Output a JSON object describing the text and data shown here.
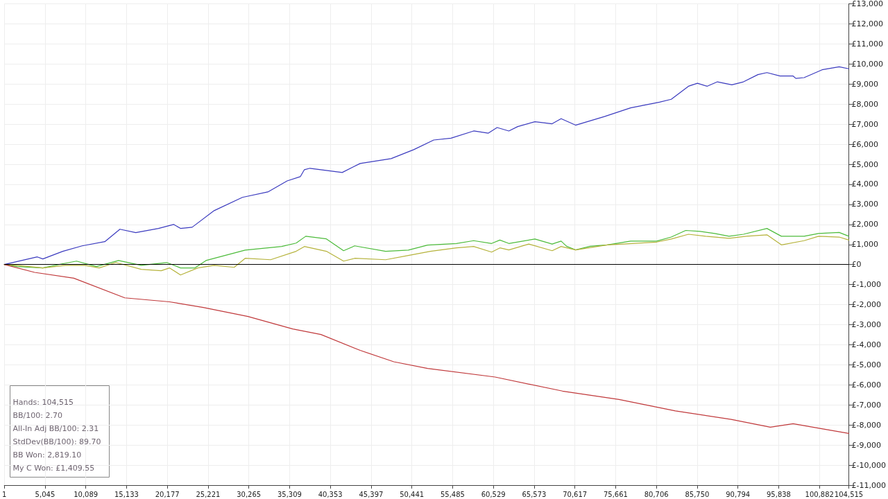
{
  "chart_data": {
    "type": "line",
    "xlim": [
      1,
      104515
    ],
    "ylim": [
      -11000,
      13000
    ],
    "xticks": [
      1,
      {
        "value": 5045,
        "label": "5,045"
      },
      {
        "value": 10089,
        "label": "10,089"
      },
      {
        "value": 15133,
        "label": "15,133"
      },
      {
        "value": 20177,
        "label": "20,177"
      },
      {
        "value": 25221,
        "label": "25,221"
      },
      {
        "value": 30265,
        "label": "30,265"
      },
      {
        "value": 35309,
        "label": "35,309"
      },
      {
        "value": 40353,
        "label": "40,353"
      },
      {
        "value": 45397,
        "label": "45,397"
      },
      {
        "value": 50441,
        "label": "50,441"
      },
      {
        "value": 55485,
        "label": "55,485"
      },
      {
        "value": 60529,
        "label": "60,529"
      },
      {
        "value": 65573,
        "label": "65,573"
      },
      {
        "value": 70617,
        "label": "70,617"
      },
      {
        "value": 75661,
        "label": "75,661"
      },
      {
        "value": 80706,
        "label": "80,706"
      },
      {
        "value": 85750,
        "label": "85,750"
      },
      {
        "value": 90794,
        "label": "90,794"
      },
      {
        "value": 95838,
        "label": "95,838"
      },
      {
        "value": 100882,
        "label": "100,882"
      },
      {
        "value": 104515,
        "label": "104,515"
      }
    ],
    "yticks": [
      {
        "value": -11000,
        "label": "£-11,000"
      },
      {
        "value": -10000,
        "label": "£-10,000"
      },
      {
        "value": -9000,
        "label": "£-9,000"
      },
      {
        "value": -8000,
        "label": "£-8,000"
      },
      {
        "value": -7000,
        "label": "£-7,000"
      },
      {
        "value": -6000,
        "label": "£-6,000"
      },
      {
        "value": -5000,
        "label": "£-5,000"
      },
      {
        "value": -4000,
        "label": "£-4,000"
      },
      {
        "value": -3000,
        "label": "£-3,000"
      },
      {
        "value": -2000,
        "label": "£-2,000"
      },
      {
        "value": -1000,
        "label": "£-1,000"
      },
      {
        "value": 0,
        "label": "£0"
      },
      {
        "value": 1000,
        "label": "£1,000"
      },
      {
        "value": 2000,
        "label": "£2,000"
      },
      {
        "value": 3000,
        "label": "£3,000"
      },
      {
        "value": 4000,
        "label": "£4,000"
      },
      {
        "value": 5000,
        "label": "£5,000"
      },
      {
        "value": 6000,
        "label": "£6,000"
      },
      {
        "value": 7000,
        "label": "£7,000"
      },
      {
        "value": 8000,
        "label": "£8,000"
      },
      {
        "value": 9000,
        "label": "£9,000"
      },
      {
        "value": 10000,
        "label": "£10,000"
      },
      {
        "value": 11000,
        "label": "£11,000"
      },
      {
        "value": 12000,
        "label": "£12,000"
      },
      {
        "value": 13000,
        "label": "£13,000"
      }
    ],
    "grid": true,
    "marker": "none",
    "line_style": "solid",
    "ref_lines": [
      {
        "axis": "y",
        "value": 0,
        "color": "#000000"
      }
    ],
    "annotations": [
      "Hands: 104,515",
      "BB/100: 2.70",
      "All-In Adj BB/100: 2.31",
      "StdDev(BB/100): 89.70",
      "BB Won: 2,819.10",
      "My C Won: £1,409.55"
    ],
    "series": [
      {
        "color": "#3b3bbf",
        "x": [
          1,
          4090,
          4770,
          7240,
          9630,
          12440,
          14310,
          16270,
          19080,
          20950,
          21810,
          23250,
          25980,
          29470,
          32620,
          35010,
          36630,
          37140,
          37820,
          41820,
          44040,
          47870,
          50680,
          53150,
          55280,
          58090,
          59880,
          60990,
          62440,
          63540,
          65670,
          67800,
          68910,
          70700,
          74280,
          77510,
          81090,
          82540,
          84670,
          85780,
          86970,
          88250,
          90040,
          91480,
          93270,
          94380,
          95990,
          97620,
          97960,
          98980,
          101200,
          103320,
          104515
        ],
        "values": [
          0,
          380,
          280,
          660,
          930,
          1140,
          1760,
          1590,
          1800,
          2000,
          1800,
          1860,
          2690,
          3350,
          3620,
          4170,
          4380,
          4730,
          4800,
          4590,
          5040,
          5280,
          5730,
          6210,
          6300,
          6660,
          6550,
          6830,
          6660,
          6880,
          7120,
          7020,
          7270,
          6950,
          7380,
          7810,
          8100,
          8240,
          8890,
          9040,
          8890,
          9110,
          8960,
          9110,
          9470,
          9570,
          9400,
          9400,
          9280,
          9320,
          9710,
          9860,
          9760
        ]
      },
      {
        "color": "#4cbb3a",
        "x": [
          1,
          1620,
          4770,
          7240,
          8940,
          11410,
          14140,
          16950,
          20100,
          21810,
          23600,
          24960,
          29810,
          34330,
          36120,
          37310,
          39860,
          41990,
          43360,
          47190,
          50000,
          52390,
          55960,
          58090,
          60310,
          61330,
          62440,
          65670,
          67800,
          68910,
          69590,
          70700,
          72490,
          74620,
          77510,
          80750,
          82540,
          84330,
          86110,
          87910,
          89690,
          91480,
          94380,
          96170,
          98980,
          100770,
          103320,
          104515
        ],
        "values": [
          0,
          -100,
          -170,
          40,
          170,
          -100,
          200,
          -40,
          100,
          -170,
          -170,
          200,
          720,
          900,
          1070,
          1410,
          1280,
          690,
          930,
          660,
          720,
          970,
          1050,
          1190,
          1050,
          1220,
          1050,
          1270,
          1020,
          1170,
          910,
          730,
          910,
          980,
          1170,
          1170,
          1370,
          1700,
          1650,
          1550,
          1410,
          1510,
          1800,
          1410,
          1410,
          1550,
          1600,
          1410
        ]
      },
      {
        "color": "#b5b23a",
        "x": [
          1,
          1620,
          4770,
          7580,
          9970,
          11750,
          13800,
          16950,
          19420,
          20440,
          21810,
          23940,
          25980,
          28450,
          29810,
          32960,
          36120,
          37140,
          39860,
          41990,
          43360,
          47190,
          50000,
          52730,
          55960,
          58090,
          60310,
          61330,
          62440,
          64910,
          67800,
          68910,
          70700,
          74620,
          80750,
          82540,
          84670,
          86800,
          89690,
          91820,
          94380,
          96170,
          98980,
          100770,
          103320,
          104515
        ],
        "values": [
          0,
          -40,
          -170,
          -40,
          -40,
          -170,
          100,
          -240,
          -310,
          -170,
          -520,
          -170,
          -40,
          -140,
          310,
          240,
          660,
          900,
          660,
          170,
          310,
          240,
          450,
          660,
          830,
          900,
          620,
          830,
          730,
          1020,
          690,
          900,
          730,
          980,
          1120,
          1270,
          1510,
          1410,
          1310,
          1410,
          1480,
          980,
          1190,
          1410,
          1370,
          1220
        ]
      },
      {
        "color": "#c0393b",
        "x": [
          1,
          3750,
          8600,
          14910,
          20440,
          24620,
          30150,
          35690,
          39180,
          44040,
          48210,
          52390,
          60730,
          69080,
          76070,
          83050,
          89950,
          94800,
          97620,
          101790,
          104515
        ],
        "values": [
          0,
          -390,
          -680,
          -1660,
          -1860,
          -2140,
          -2590,
          -3210,
          -3490,
          -4280,
          -4850,
          -5180,
          -5610,
          -6310,
          -6730,
          -7300,
          -7720,
          -8110,
          -7940,
          -8230,
          -8420
        ]
      }
    ]
  }
}
